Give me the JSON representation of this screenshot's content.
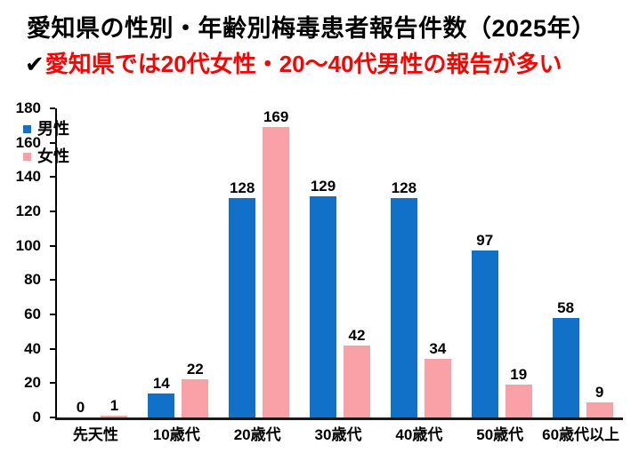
{
  "title": "愛知県の性別・年齢別梅毒患者報告件数（2025年）",
  "subtitle": {
    "check": "✔",
    "text": "愛知県では20代女性・20～40代男性の報告が多い"
  },
  "colors": {
    "male_bar": "#1170C8",
    "female_bar": "#F9A1A6",
    "subtitle_text": "#FF0000",
    "axis": "#000000"
  },
  "chart_data": {
    "type": "bar",
    "title": "愛知県の性別・年齢別梅毒患者報告件数（2025年）",
    "categories": [
      "先天性",
      "10歳代",
      "20歳代",
      "30歳代",
      "40歳代",
      "50歳代",
      "60歳代以上"
    ],
    "series": [
      {
        "name": "男性",
        "color": "#1170C8",
        "values": [
          0,
          14,
          128,
          129,
          128,
          97,
          58
        ]
      },
      {
        "name": "女性",
        "color": "#F9A1A6",
        "values": [
          1,
          22,
          169,
          42,
          34,
          19,
          9
        ]
      }
    ],
    "xlabel": "",
    "ylabel": "",
    "ylim": [
      0,
      180
    ],
    "ytick_step": 20,
    "grid": false,
    "legend_position": "upper-left-inside",
    "data_labels": true
  }
}
